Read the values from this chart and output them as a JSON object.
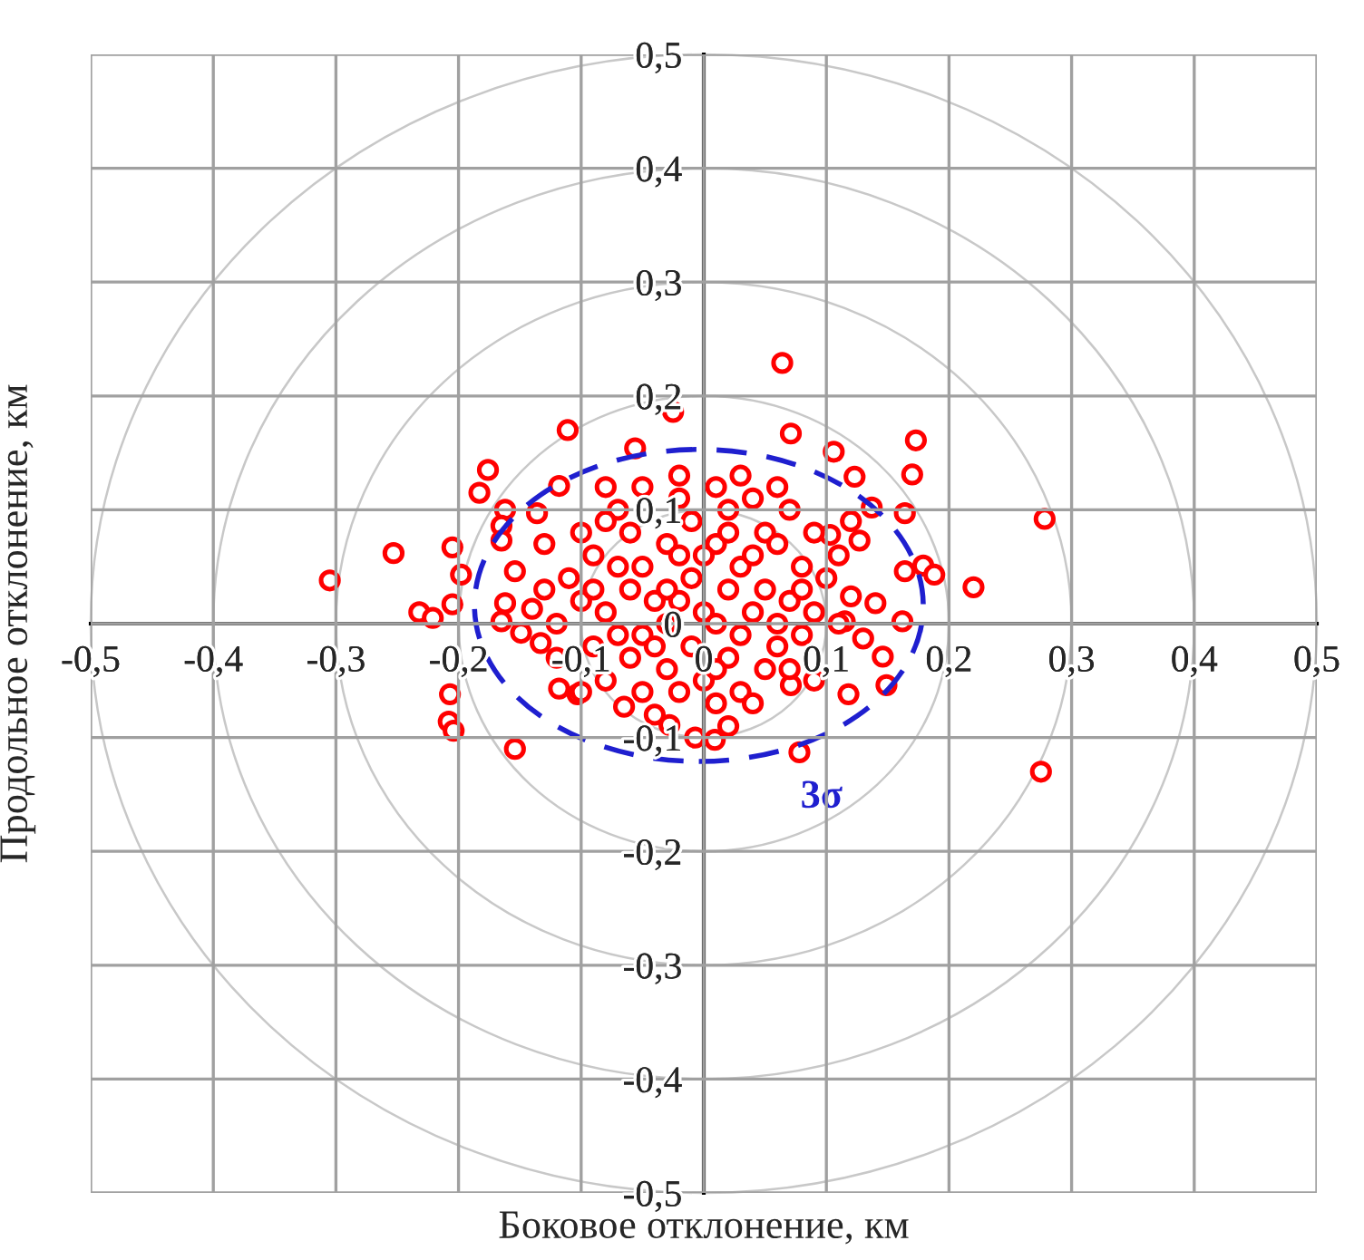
{
  "chart_data": {
    "type": "scatter",
    "xlabel": "Боковое отклонение, км",
    "ylabel": "Продольное отклонение, км",
    "xlim": [
      -0.5,
      0.5
    ],
    "ylim": [
      -0.5,
      0.5
    ],
    "xticks": [
      {
        "value": -0.5,
        "label": "-0,5"
      },
      {
        "value": -0.4,
        "label": "-0,4"
      },
      {
        "value": -0.3,
        "label": "-0,3"
      },
      {
        "value": -0.2,
        "label": "-0,2"
      },
      {
        "value": -0.1,
        "label": "-0,1"
      },
      0,
      {
        "value": 0.1,
        "label": "0,1"
      },
      {
        "value": 0.2,
        "label": "0,2"
      },
      {
        "value": 0.3,
        "label": "0,3"
      },
      {
        "value": 0.4,
        "label": "0,4"
      },
      {
        "value": 0.5,
        "label": "0,5"
      }
    ],
    "yticks": [
      {
        "value": -0.5,
        "label": "-0,5"
      },
      {
        "value": -0.4,
        "label": "-0,4"
      },
      {
        "value": -0.3,
        "label": "-0,3"
      },
      {
        "value": -0.2,
        "label": "-0,2"
      },
      {
        "value": -0.1,
        "label": "-0,1"
      },
      0,
      {
        "value": 0.1,
        "label": "0,1"
      },
      {
        "value": 0.2,
        "label": "0,2"
      },
      {
        "value": 0.3,
        "label": "0,3"
      },
      {
        "value": 0.4,
        "label": "0,4"
      },
      {
        "value": 0.5,
        "label": "0,5"
      }
    ],
    "grid": true,
    "marker": "circle",
    "annotations": [
      "3σ"
    ],
    "series": [
      {
        "color": "#ff0000",
        "x": [
          -0.305,
          -0.253,
          -0.232,
          -0.221,
          -0.205,
          -0.198,
          -0.205,
          -0.207,
          -0.208,
          -0.204,
          -0.176,
          -0.183,
          -0.162,
          -0.165,
          -0.165,
          -0.154,
          -0.162,
          -0.165,
          -0.149,
          -0.154,
          -0.111,
          -0.118,
          -0.136,
          -0.14,
          -0.133,
          -0.118,
          -0.103,
          -0.056,
          -0.065,
          0.064,
          -0.025,
          0.071,
          0.106,
          0.123,
          0.173,
          0.17,
          0.137,
          0.164,
          0.164,
          0.179,
          0.188,
          0.22,
          0.278,
          0.275,
          0.162,
          0.14,
          0.146,
          0.149,
          0.118,
          0.078,
          0.127,
          0.103,
          0.071,
          0.009,
          -0.007,
          -0.028,
          0.12,
          0.115,
          0.13,
          -0.1,
          -0.09,
          -0.11,
          -0.1,
          -0.12,
          -0.09,
          -0.08,
          -0.07,
          -0.06,
          -0.08,
          -0.07,
          -0.06,
          -0.08,
          -0.07,
          -0.06,
          -0.05,
          -0.04,
          -0.05,
          -0.03,
          -0.05,
          -0.04,
          -0.03,
          -0.05,
          -0.03,
          -0.02,
          -0.02,
          -0.01,
          -0.02,
          -0.01,
          -0.02,
          0.0,
          -0.01,
          0.0,
          0.01,
          0.01,
          0.02,
          0.01,
          0.03,
          0.02,
          0.01,
          0.03,
          0.02,
          0.03,
          0.02,
          0.04,
          0.05,
          0.04,
          0.05,
          0.04,
          0.06,
          0.05,
          0.04,
          0.07,
          0.06,
          0.08,
          0.07,
          0.08,
          0.07,
          0.09,
          0.1,
          0.09,
          0.09,
          0.11,
          0.12,
          0.11,
          -0.13,
          -0.13,
          -0.12,
          -0.1,
          -0.02,
          0.03,
          0.06,
          -0.08,
          0.0,
          -0.03,
          0.02,
          0.06,
          -0.09,
          0.08,
          -0.04,
          0.01
        ],
        "values": [
          0.038,
          0.062,
          0.01,
          0.005,
          0.067,
          0.043,
          0.017,
          -0.062,
          -0.086,
          -0.094,
          0.135,
          0.115,
          0.1,
          0.086,
          0.073,
          0.046,
          0.018,
          0.002,
          -0.008,
          -0.11,
          0.17,
          0.121,
          0.097,
          0.013,
          -0.017,
          -0.057,
          -0.062,
          0.154,
          -0.073,
          0.229,
          0.186,
          0.167,
          0.151,
          0.129,
          0.161,
          0.131,
          0.102,
          0.097,
          0.046,
          0.051,
          0.043,
          0.032,
          0.092,
          -0.13,
          0.002,
          0.018,
          -0.029,
          -0.054,
          -0.062,
          -0.113,
          0.073,
          0.078,
          -0.054,
          -0.102,
          -0.1,
          -0.089,
          0.024,
          0.002,
          -0.013,
          0.08,
          0.06,
          0.04,
          0.02,
          0.0,
          -0.02,
          -0.05,
          0.1,
          0.08,
          0.09,
          0.05,
          0.03,
          0.01,
          -0.01,
          -0.03,
          -0.06,
          -0.08,
          0.12,
          0.07,
          0.05,
          0.02,
          0.0,
          -0.01,
          -0.04,
          -0.06,
          0.11,
          0.09,
          0.06,
          0.04,
          0.02,
          0.01,
          -0.02,
          -0.05,
          -0.07,
          0.12,
          0.1,
          0.07,
          0.05,
          0.03,
          0.0,
          -0.01,
          -0.03,
          -0.06,
          -0.09,
          0.11,
          0.08,
          0.06,
          0.03,
          0.01,
          -0.02,
          -0.04,
          -0.07,
          0.1,
          0.07,
          0.05,
          0.02,
          -0.01,
          -0.04,
          0.08,
          0.04,
          0.01,
          -0.05,
          0.06,
          0.09,
          0.0,
          0.07,
          0.03,
          -0.03,
          -0.06,
          0.13,
          0.13,
          0.12,
          0.12,
          0.06,
          0.03,
          0.08,
          0.0,
          0.03,
          0.03,
          -0.02,
          -0.04
        ]
      }
    ]
  }
}
